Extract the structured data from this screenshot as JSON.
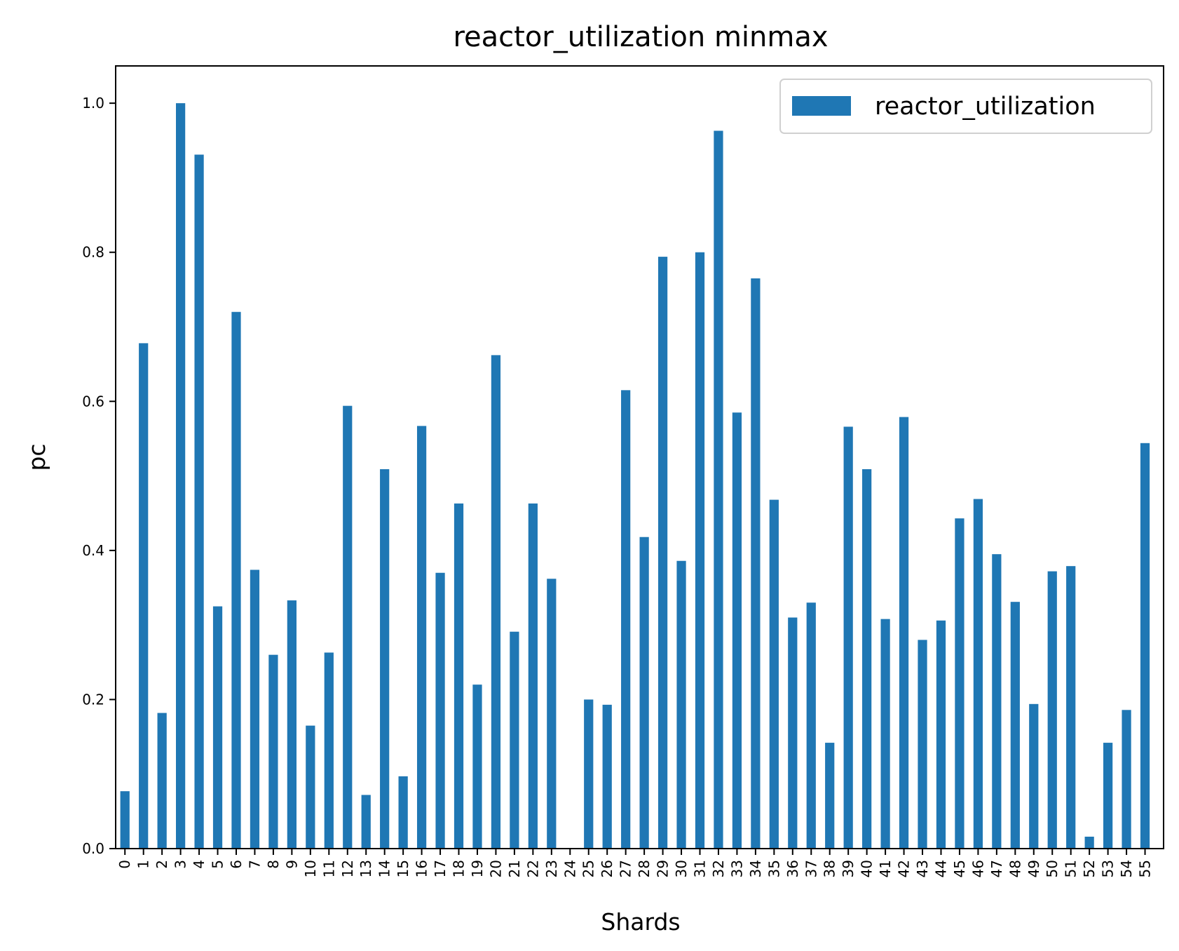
{
  "chart_data": {
    "type": "bar",
    "title": "reactor_utilization minmax",
    "xlabel": "Shards",
    "ylabel": "pc",
    "categories": [
      "0",
      "1",
      "2",
      "3",
      "4",
      "5",
      "6",
      "7",
      "8",
      "9",
      "10",
      "11",
      "12",
      "13",
      "14",
      "15",
      "16",
      "17",
      "18",
      "19",
      "20",
      "21",
      "22",
      "23",
      "24",
      "25",
      "26",
      "27",
      "28",
      "29",
      "30",
      "31",
      "32",
      "33",
      "34",
      "35",
      "36",
      "37",
      "38",
      "39",
      "40",
      "41",
      "42",
      "43",
      "44",
      "45",
      "46",
      "47",
      "48",
      "49",
      "50",
      "51",
      "52",
      "53",
      "54",
      "55"
    ],
    "series": [
      {
        "name": "reactor_utilization",
        "color": "#1f77b4",
        "values": [
          0.077,
          0.678,
          0.182,
          1.0,
          0.931,
          0.325,
          0.72,
          0.374,
          0.26,
          0.333,
          0.165,
          0.263,
          0.594,
          0.072,
          0.509,
          0.097,
          0.567,
          0.37,
          0.463,
          0.22,
          0.662,
          0.291,
          0.463,
          0.362,
          0.0,
          0.2,
          0.193,
          0.615,
          0.418,
          0.794,
          0.386,
          0.8,
          0.963,
          0.585,
          0.765,
          0.468,
          0.31,
          0.33,
          0.142,
          0.566,
          0.509,
          0.308,
          0.579,
          0.28,
          0.306,
          0.443,
          0.469,
          0.395,
          0.331,
          0.194,
          0.372,
          0.379,
          0.016,
          0.142,
          0.186,
          0.544
        ]
      }
    ],
    "ylim": [
      0,
      1.05
    ],
    "yticks": [
      0.0,
      0.2,
      0.4,
      0.6,
      0.8,
      1.0
    ],
    "ytick_labels": [
      "0.0",
      "0.2",
      "0.4",
      "0.6",
      "0.8",
      "1.0"
    ],
    "grid": false,
    "legend_position": "top-right"
  }
}
